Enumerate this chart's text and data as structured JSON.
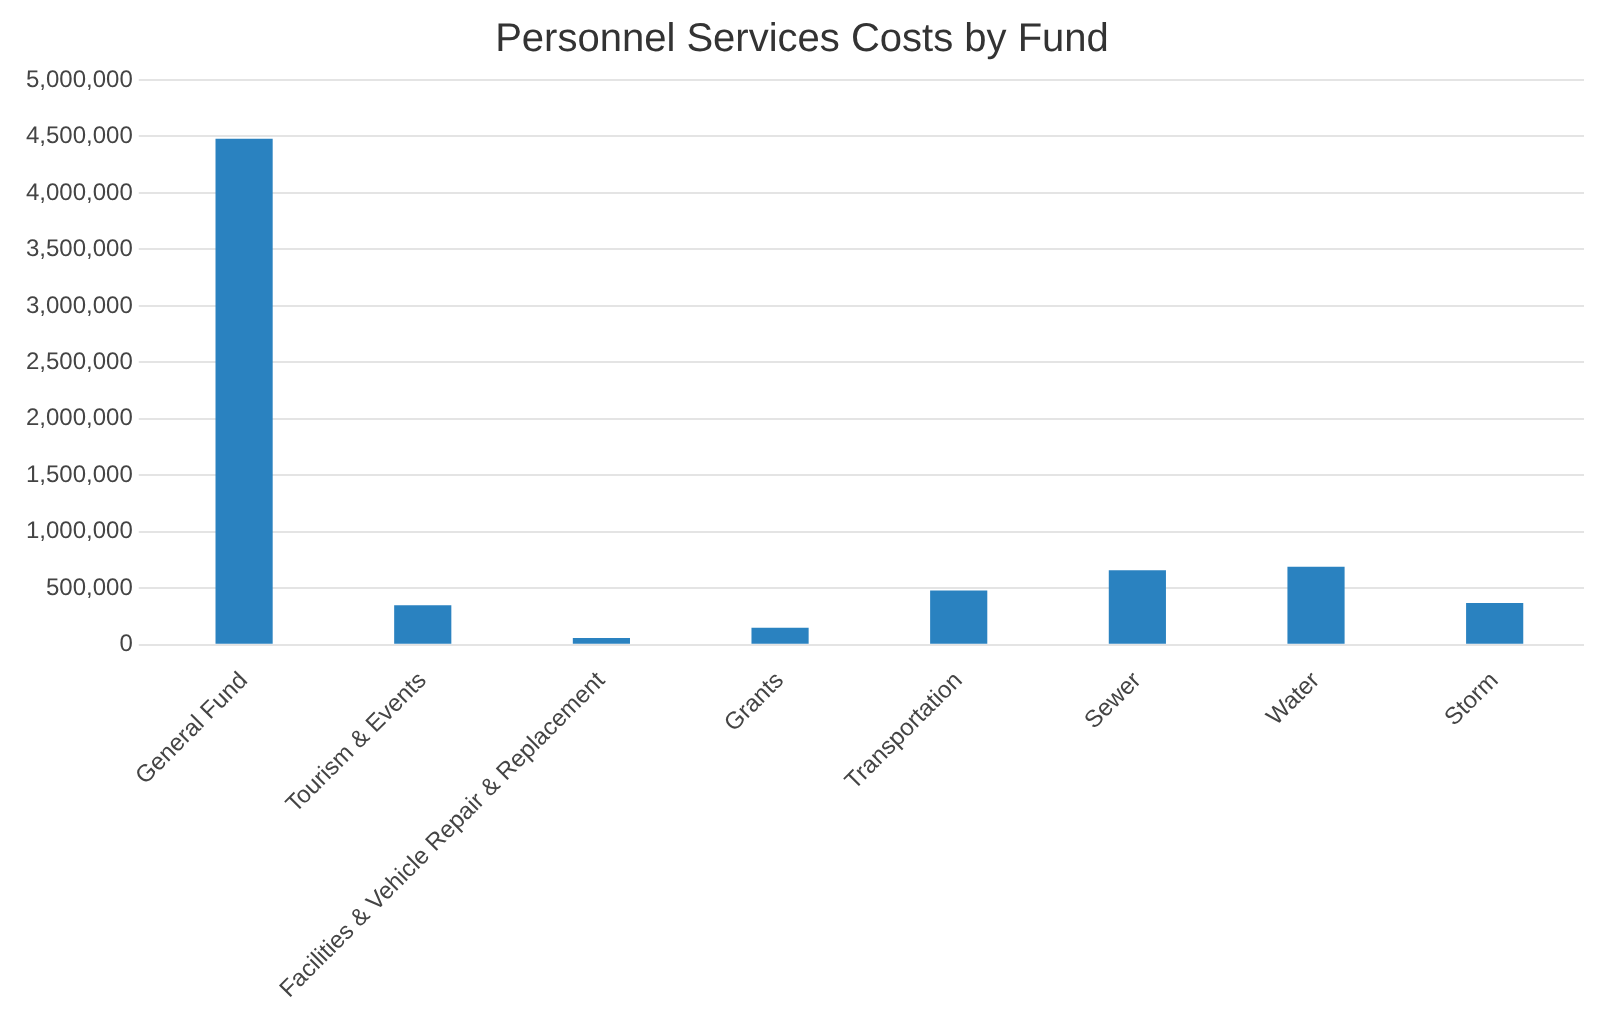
{
  "chart_data": {
    "type": "bar",
    "title": "Personnel Services Costs by Fund",
    "categories": [
      "General Fund",
      "Tourism & Events",
      "Facilities & Vehicle Repair & Replacement",
      "Grants",
      "Transportation",
      "Sewer",
      "Water",
      "Storm"
    ],
    "values": [
      4480000,
      350000,
      60000,
      150000,
      480000,
      660000,
      690000,
      370000
    ],
    "color": "#2a82c0",
    "ylim": [
      0,
      5000000
    ],
    "yticks": [
      {
        "value": 0,
        "label": "0"
      },
      {
        "value": 500000,
        "label": "500,000"
      },
      {
        "value": 1000000,
        "label": "1,000,000"
      },
      {
        "value": 1500000,
        "label": "1,500,000"
      },
      {
        "value": 2000000,
        "label": "2,000,000"
      },
      {
        "value": 2500000,
        "label": "2,500,000"
      },
      {
        "value": 3000000,
        "label": "3,000,000"
      },
      {
        "value": 3500000,
        "label": "3,500,000"
      },
      {
        "value": 4000000,
        "label": "4,000,000"
      },
      {
        "value": 4500000,
        "label": "4,500,000"
      },
      {
        "value": 5000000,
        "label": "5,000,000"
      }
    ],
    "grid": "y"
  }
}
